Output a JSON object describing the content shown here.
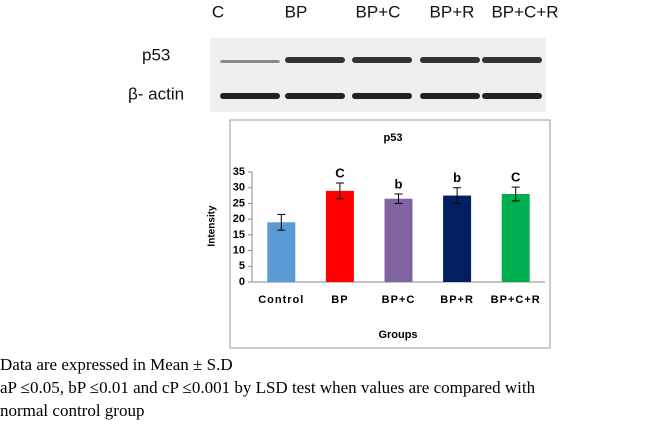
{
  "blot": {
    "lanes": [
      "C",
      "BP",
      "BP+C",
      "BP+R",
      "BP+C+R"
    ],
    "rows": [
      "p53",
      "β- actin"
    ]
  },
  "chart_data": {
    "type": "bar",
    "title": "p53",
    "x_label": "Groups",
    "y_label": "Intensity",
    "categories": [
      "Control",
      "BP",
      "BP+C",
      "BP+R",
      "BP+C+R"
    ],
    "values": [
      19,
      29,
      26.5,
      27.5,
      28
    ],
    "errors": [
      2.5,
      2.5,
      1.5,
      2.5,
      2.2
    ],
    "annotations": [
      null,
      "C",
      "b",
      "b",
      "C"
    ],
    "colors": [
      "#5b9bd5",
      "#ff0000",
      "#8064a2",
      "#002060",
      "#00b050"
    ],
    "ylim": [
      0,
      35
    ],
    "yticks": [
      0,
      5,
      10,
      15,
      20,
      25,
      30,
      35
    ],
    "grid": false
  },
  "caption": [
    "Data are expressed in Mean ± S.D",
    "aP ≤0.05, bP ≤0.01 and cP ≤0.001 by LSD test  when values are compared with",
    "normal control group"
  ]
}
